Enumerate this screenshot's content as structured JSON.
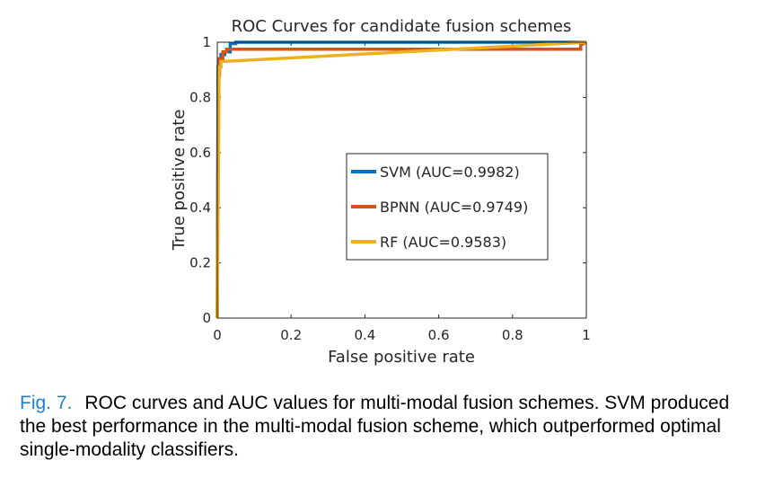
{
  "chart_data": {
    "type": "line",
    "title": "ROC Curves for candidate fusion schemes",
    "xlabel": "False positive rate",
    "ylabel": "True positive rate",
    "xlim": [
      0,
      1
    ],
    "ylim": [
      0,
      1
    ],
    "xticks": [
      {
        "value": 0,
        "label": "0"
      },
      {
        "value": 0.2,
        "label": "0.2"
      },
      {
        "value": 0.4,
        "label": "0.4"
      },
      {
        "value": 0.6,
        "label": "0.6"
      },
      {
        "value": 0.8,
        "label": "0.8"
      },
      {
        "value": 1,
        "label": "1"
      }
    ],
    "yticks": [
      {
        "value": 0,
        "label": "0"
      },
      {
        "value": 0.2,
        "label": "0.2"
      },
      {
        "value": 0.4,
        "label": "0.4"
      },
      {
        "value": 0.6,
        "label": "0.6"
      },
      {
        "value": 0.8,
        "label": "0.8"
      },
      {
        "value": 1,
        "label": "1"
      }
    ],
    "grid": false,
    "legend_position": "center-right",
    "series": [
      {
        "name": "SVM (AUC=0.9982)",
        "color": "#0072BD",
        "x": [
          0,
          0.002,
          0.004,
          0.004,
          0.01,
          0.01,
          0.02,
          0.02,
          0.035,
          0.035,
          0.05,
          0.05,
          1
        ],
        "y": [
          0,
          0.91,
          0.91,
          0.94,
          0.94,
          0.955,
          0.955,
          0.965,
          0.965,
          0.995,
          0.995,
          1,
          1
        ]
      },
      {
        "name": "BPNN (AUC=0.9749)",
        "color": "#D95319",
        "x": [
          0,
          0.003,
          0.006,
          0.006,
          0.015,
          0.015,
          0.025,
          0.025,
          0.985,
          0.985,
          1
        ],
        "y": [
          0,
          0.88,
          0.88,
          0.94,
          0.94,
          0.965,
          0.965,
          0.975,
          0.975,
          0.99,
          1
        ]
      },
      {
        "name": "RF (AUC=0.9583)",
        "color": "#EDB120",
        "x": [
          0,
          0.005,
          0.01,
          0.01,
          1
        ],
        "y": [
          0,
          0.91,
          0.91,
          0.93,
          1
        ]
      }
    ]
  },
  "caption": {
    "label": "Fig. 7.",
    "text": "ROC curves and AUC values for multi-modal fusion schemes. SVM produced the best performance in the multi-modal fusion scheme, which outperformed optimal single-modality classifiers."
  }
}
